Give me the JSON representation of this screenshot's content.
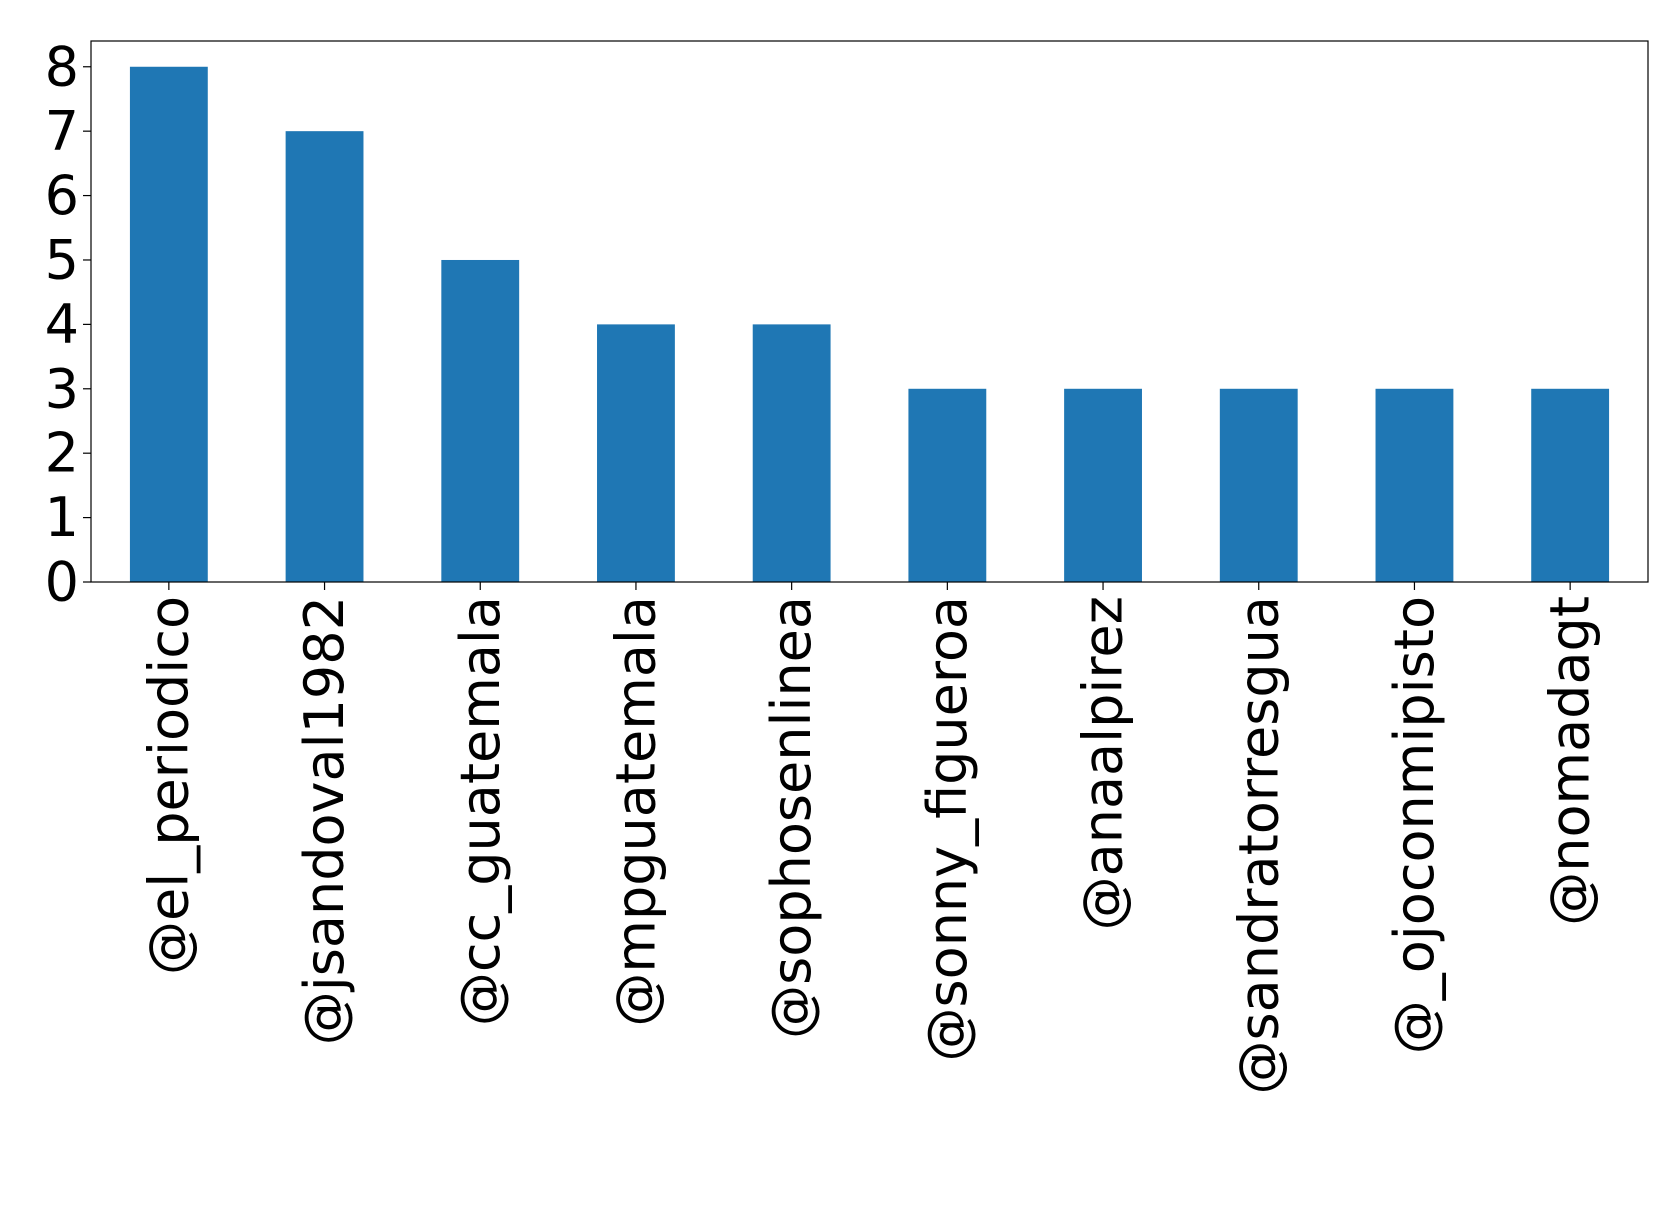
{
  "chart_data": {
    "type": "bar",
    "categories": [
      "@el_periodico",
      "@jsandoval1982",
      "@cc_guatemala",
      "@mpguatemala",
      "@sophosenlinea",
      "@sonny_figueroa",
      "@anaalpirez",
      "@sandratorresgua",
      "@_ojoconmipisto",
      "@nomadagt"
    ],
    "values": [
      8,
      7,
      5,
      4,
      4,
      3,
      3,
      3,
      3,
      3
    ],
    "color": "#1f77b4",
    "ylim": [
      0,
      8.4
    ],
    "yticks": [
      0,
      1,
      2,
      3,
      4,
      5,
      6,
      7,
      8
    ],
    "grid": false
  }
}
